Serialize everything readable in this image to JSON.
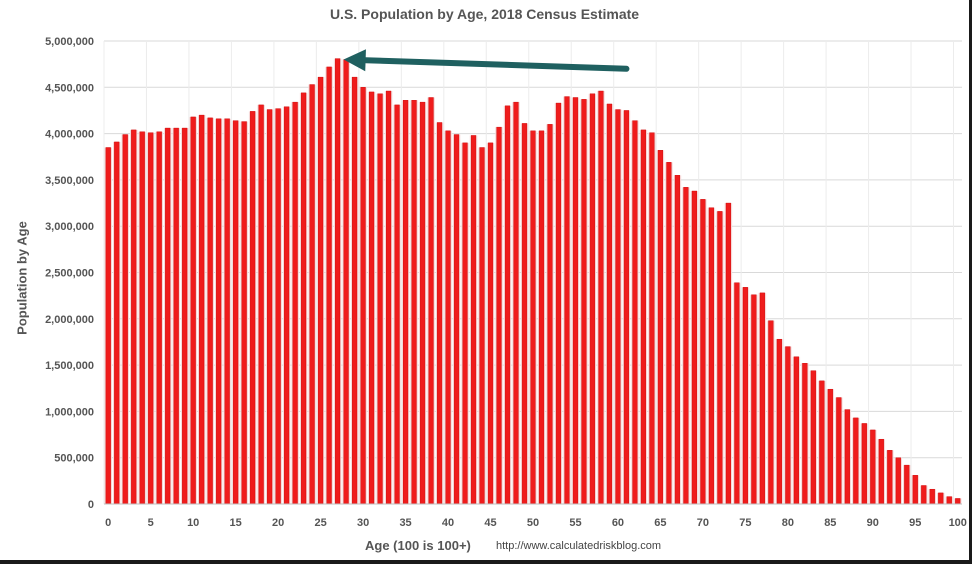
{
  "chart_data": {
    "type": "bar",
    "title": "U.S. Population by Age, 2018 Census Estimate",
    "xlabel": "Age (100 is 100+)",
    "ylabel": "Population by Age",
    "source_text": "http://www.calculatedriskblog.com",
    "ylim": [
      0,
      5000000
    ],
    "y_ticks": [
      0,
      500000,
      1000000,
      1500000,
      2000000,
      2500000,
      3000000,
      3500000,
      4000000,
      4500000,
      5000000
    ],
    "y_tick_labels": [
      "0",
      "500,000",
      "1,000,000",
      "1,500,000",
      "2,000,000",
      "2,500,000",
      "3,000,000",
      "3,500,000",
      "4,000,000",
      "4,500,000",
      "5,000,000"
    ],
    "x_ticks": [
      0,
      5,
      10,
      15,
      20,
      25,
      30,
      35,
      40,
      45,
      50,
      55,
      60,
      65,
      70,
      75,
      80,
      85,
      90,
      95,
      100
    ],
    "x_tick_labels": [
      "0",
      "5",
      "10",
      "15",
      "20",
      "25",
      "30",
      "35",
      "40",
      "45",
      "50",
      "55",
      "60",
      "65",
      "70",
      "75",
      "80",
      "85",
      "90",
      "95",
      "100"
    ],
    "categories": [
      0,
      1,
      2,
      3,
      4,
      5,
      6,
      7,
      8,
      9,
      10,
      11,
      12,
      13,
      14,
      15,
      16,
      17,
      18,
      19,
      20,
      21,
      22,
      23,
      24,
      25,
      26,
      27,
      28,
      29,
      30,
      31,
      32,
      33,
      34,
      35,
      36,
      37,
      38,
      39,
      40,
      41,
      42,
      43,
      44,
      45,
      46,
      47,
      48,
      49,
      50,
      51,
      52,
      53,
      54,
      55,
      56,
      57,
      58,
      59,
      60,
      61,
      62,
      63,
      64,
      65,
      66,
      67,
      68,
      69,
      70,
      71,
      72,
      73,
      74,
      75,
      76,
      77,
      78,
      79,
      80,
      81,
      82,
      83,
      84,
      85,
      86,
      87,
      88,
      89,
      90,
      91,
      92,
      93,
      94,
      95,
      96,
      97,
      98,
      99,
      100
    ],
    "values": [
      3850000,
      3910000,
      3990000,
      4040000,
      4020000,
      4010000,
      4020000,
      4060000,
      4060000,
      4060000,
      4180000,
      4200000,
      4170000,
      4160000,
      4160000,
      4140000,
      4130000,
      4240000,
      4310000,
      4260000,
      4270000,
      4290000,
      4340000,
      4440000,
      4530000,
      4610000,
      4720000,
      4810000,
      4800000,
      4610000,
      4500000,
      4450000,
      4430000,
      4460000,
      4310000,
      4360000,
      4360000,
      4340000,
      4390000,
      4120000,
      4030000,
      3990000,
      3900000,
      3980000,
      3850000,
      3900000,
      4070000,
      4300000,
      4340000,
      4110000,
      4030000,
      4030000,
      4100000,
      4330000,
      4400000,
      4390000,
      4370000,
      4430000,
      4460000,
      4320000,
      4260000,
      4250000,
      4140000,
      4040000,
      4010000,
      3820000,
      3690000,
      3550000,
      3420000,
      3380000,
      3290000,
      3200000,
      3160000,
      3250000,
      2390000,
      2340000,
      2260000,
      2280000,
      1980000,
      1780000,
      1700000,
      1590000,
      1520000,
      1440000,
      1330000,
      1240000,
      1150000,
      1020000,
      930000,
      870000,
      800000,
      700000,
      580000,
      500000,
      420000,
      310000,
      200000,
      160000,
      120000,
      80000,
      60000
    ],
    "arrow": {
      "from_age": 61,
      "from_value": 4700000,
      "to_age": 27,
      "to_value": 4800000,
      "color": "#1f6060"
    },
    "colors": {
      "bar_fill": "#ef1c1c",
      "bar_stroke": "#cc0000",
      "gap": "#f6d8d8",
      "grid": "#d9d9d9",
      "axis": "#bfbfbf"
    },
    "grid": true,
    "legend": "none"
  }
}
